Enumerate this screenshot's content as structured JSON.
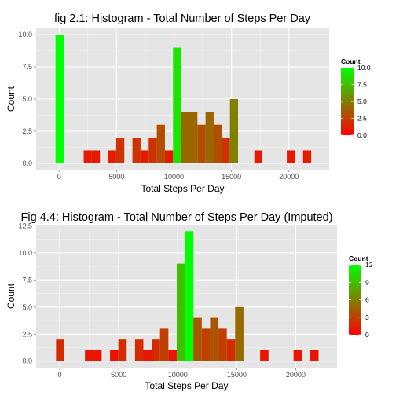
{
  "chart_data": [
    {
      "type": "bar",
      "title": "fig 2.1: Histogram - Total Number of Steps Per Day",
      "xlabel": "Total Steps Per Day",
      "ylabel": "Count",
      "xlim": [
        -2000,
        23500
      ],
      "ylim": [
        -0.5,
        10.5
      ],
      "xticks": [
        0,
        5000,
        10000,
        15000,
        20000
      ],
      "xtick_labels": [
        "0",
        "5000",
        "10000",
        "15000",
        "20000"
      ],
      "yticks": [
        0,
        2.5,
        5,
        7.5,
        10
      ],
      "ytick_labels": [
        "0.0",
        "2.5",
        "5.0",
        "7.5",
        "10.0"
      ],
      "bin_width": 707,
      "bins": [
        {
          "x": 41,
          "count": 10
        },
        {
          "x": 2492,
          "count": 1
        },
        {
          "x": 3199,
          "count": 1
        },
        {
          "x": 4613,
          "count": 1
        },
        {
          "x": 5320,
          "count": 2
        },
        {
          "x": 6734,
          "count": 2
        },
        {
          "x": 7441,
          "count": 1
        },
        {
          "x": 8148,
          "count": 2
        },
        {
          "x": 8855,
          "count": 3
        },
        {
          "x": 9562,
          "count": 1
        },
        {
          "x": 10269,
          "count": 9
        },
        {
          "x": 10976,
          "count": 4
        },
        {
          "x": 11683,
          "count": 4
        },
        {
          "x": 12390,
          "count": 3
        },
        {
          "x": 13097,
          "count": 4
        },
        {
          "x": 13804,
          "count": 3
        },
        {
          "x": 14511,
          "count": 2
        },
        {
          "x": 15218,
          "count": 5
        },
        {
          "x": 17339,
          "count": 1
        },
        {
          "x": 20167,
          "count": 1
        },
        {
          "x": 21581,
          "count": 1
        }
      ],
      "legend": {
        "title": "Count",
        "placement": "right",
        "range": [
          0,
          10
        ],
        "ticks": [
          0,
          2.5,
          5,
          7.5,
          10
        ],
        "tick_labels": [
          "0.0",
          "2.5",
          "5.0",
          "7.5",
          "10.0"
        ],
        "low_color": "#ff0000",
        "high_color": "#00ff00"
      },
      "grid": true
    },
    {
      "type": "bar",
      "title": "Fig 4.4: Histogram - Total Number of Steps Per Day (Imputed)",
      "xlabel": "Total Steps Per Day",
      "ylabel": "Count",
      "xlim": [
        -2000,
        23500
      ],
      "ylim": [
        -0.6,
        12.6
      ],
      "xticks": [
        0,
        5000,
        10000,
        15000,
        20000
      ],
      "xtick_labels": [
        "0",
        "5000",
        "10000",
        "15000",
        "20000"
      ],
      "yticks": [
        0,
        2.5,
        5,
        7.5,
        10,
        12.5
      ],
      "ytick_labels": [
        "0.0",
        "2.5",
        "5.0",
        "7.5",
        "10.0",
        "12.5"
      ],
      "bin_width": 707,
      "bins": [
        {
          "x": 41,
          "count": 2
        },
        {
          "x": 2492,
          "count": 1
        },
        {
          "x": 3199,
          "count": 1
        },
        {
          "x": 4613,
          "count": 1
        },
        {
          "x": 5320,
          "count": 2
        },
        {
          "x": 6734,
          "count": 2
        },
        {
          "x": 7441,
          "count": 1
        },
        {
          "x": 8148,
          "count": 2
        },
        {
          "x": 8855,
          "count": 3
        },
        {
          "x": 9562,
          "count": 1
        },
        {
          "x": 10269,
          "count": 9
        },
        {
          "x": 10976,
          "count": 12
        },
        {
          "x": 11683,
          "count": 4
        },
        {
          "x": 12390,
          "count": 3
        },
        {
          "x": 13097,
          "count": 4
        },
        {
          "x": 13804,
          "count": 3
        },
        {
          "x": 14511,
          "count": 2
        },
        {
          "x": 15218,
          "count": 5
        },
        {
          "x": 17339,
          "count": 1
        },
        {
          "x": 20167,
          "count": 1
        },
        {
          "x": 21581,
          "count": 1
        }
      ],
      "legend": {
        "title": "Count",
        "placement": "right",
        "range": [
          0,
          12
        ],
        "ticks": [
          0,
          3,
          6,
          9,
          12
        ],
        "tick_labels": [
          "0",
          "3",
          "6",
          "9",
          "12"
        ],
        "low_color": "#ff0000",
        "high_color": "#00ff00"
      },
      "grid": true
    }
  ]
}
